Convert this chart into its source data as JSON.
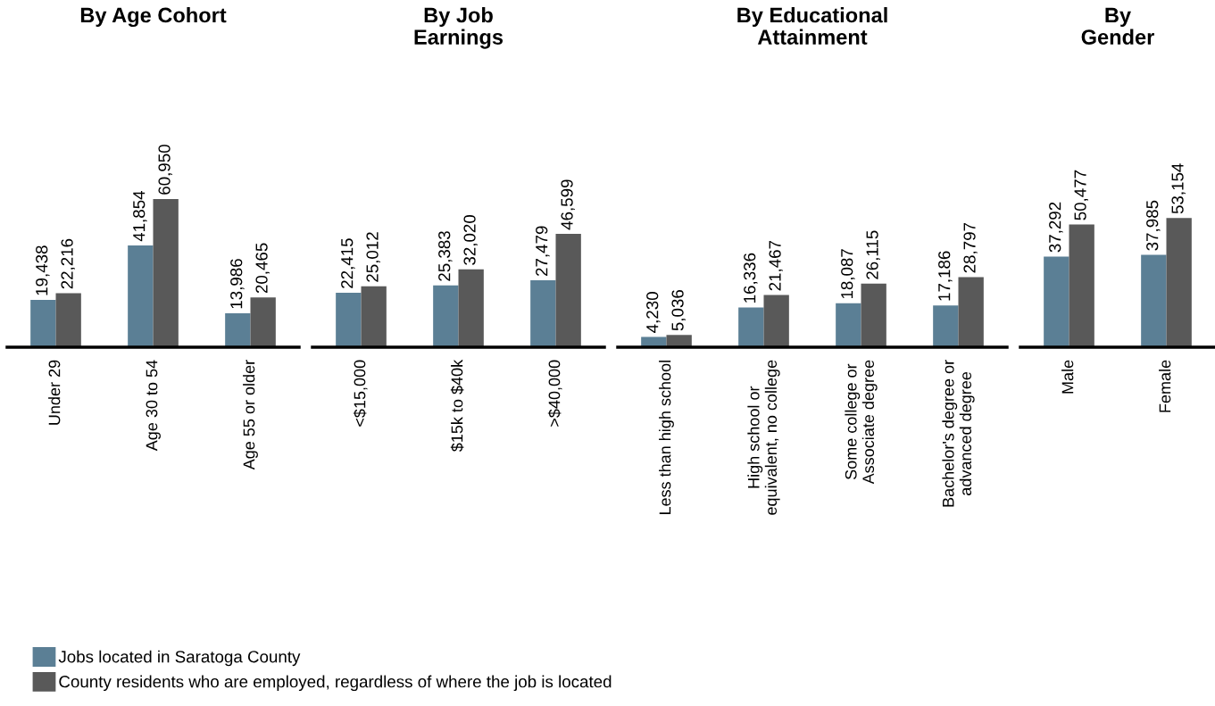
{
  "chart_data": [
    {
      "type": "bar",
      "title": "By Age Cohort",
      "categories": [
        "Under 29",
        "Age 30 to 54",
        "Age 55 or older"
      ],
      "tick_labels": "x",
      "legend": "bottom",
      "series": [
        {
          "name": "Jobs located in Saratoga County",
          "color": "#5b7f95",
          "values": [
            19438,
            41854,
            13986
          ],
          "value_labels": [
            "19,438",
            "41,854",
            "13,986"
          ]
        },
        {
          "name": "County residents who are employed, regardless of where the job is located",
          "color": "#595959",
          "values": [
            22216,
            60950,
            20465
          ],
          "value_labels": [
            "22,216",
            "60,950",
            "20,465"
          ]
        }
      ]
    },
    {
      "type": "bar",
      "title": "By Job\nEarnings",
      "categories": [
        "<$15,000",
        "$15k to $40k",
        ">$40,000"
      ],
      "tick_labels": "x",
      "series": [
        {
          "color": "#5b7f95",
          "values": [
            22415,
            25383,
            27479
          ],
          "value_labels": [
            "22,415",
            "25,383",
            "27,479"
          ]
        },
        {
          "color": "#595959",
          "values": [
            25012,
            32020,
            46599
          ],
          "value_labels": [
            "25,012",
            "32,020",
            "46,599"
          ]
        }
      ]
    },
    {
      "type": "bar",
      "title": "By Educational\nAttainment",
      "categories": [
        "Less than high school",
        "High school or\nequivalent, no college",
        "Some college or\nAssociate degree",
        "Bachelor's degree or\nadvanced degree"
      ],
      "tick_labels": "x",
      "series": [
        {
          "color": "#5b7f95",
          "values": [
            4230,
            16336,
            18087,
            17186
          ],
          "value_labels": [
            "4,230",
            "16,336",
            "18,087",
            "17,186"
          ]
        },
        {
          "color": "#595959",
          "values": [
            5036,
            21467,
            26115,
            28797
          ],
          "value_labels": [
            "5,036",
            "21,467",
            "26,115",
            "28,797"
          ]
        }
      ]
    },
    {
      "type": "bar",
      "title": "By\nGender",
      "categories": [
        "Male",
        "Female"
      ],
      "tick_labels": "x",
      "series": [
        {
          "color": "#5b7f95",
          "values": [
            37292,
            37985
          ],
          "value_labels": [
            "37,292",
            "37,985"
          ]
        },
        {
          "color": "#595959",
          "values": [
            50477,
            53154
          ],
          "value_labels": [
            "50,477",
            "53,154"
          ]
        }
      ]
    }
  ]
}
